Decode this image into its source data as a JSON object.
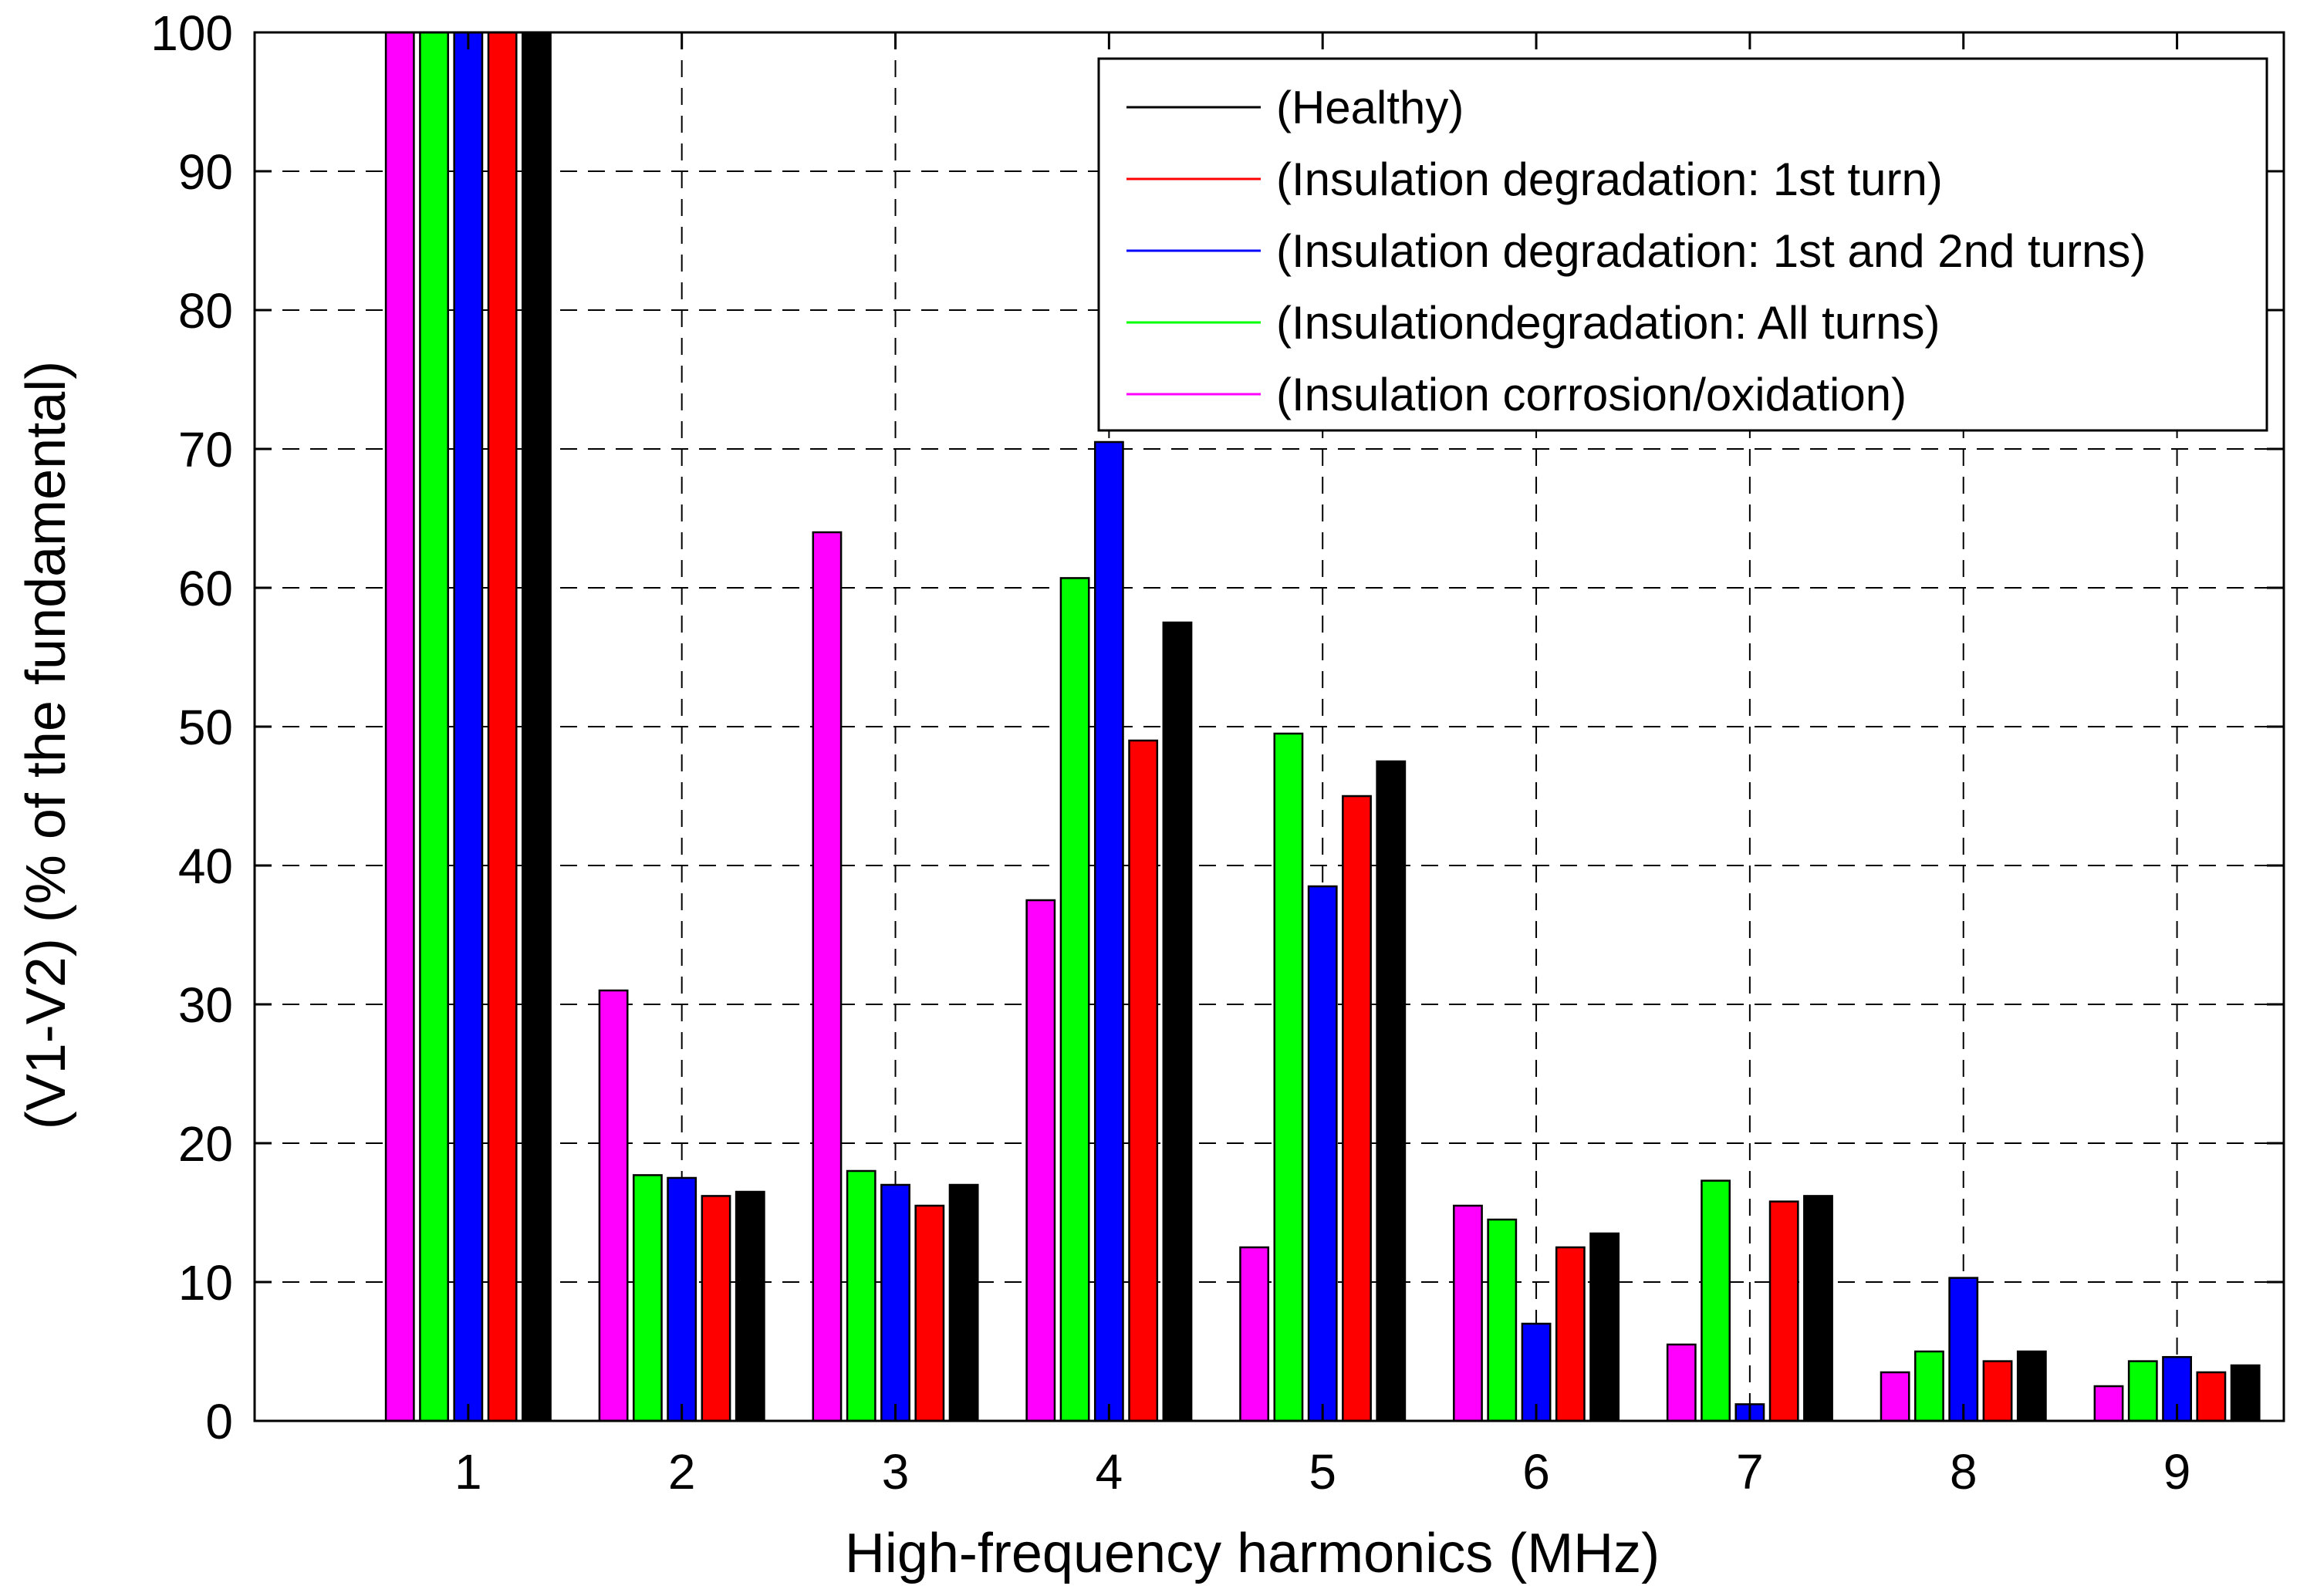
{
  "chart_data": {
    "type": "bar",
    "title": "",
    "xlabel": "High-frequency harmonics (MHz)",
    "ylabel": "(V1-V2) (% of the fundamental)",
    "ylim": [
      0,
      100
    ],
    "xlim": [
      0,
      9.5
    ],
    "yticks": [
      0,
      10,
      20,
      30,
      40,
      50,
      60,
      70,
      80,
      90,
      100
    ],
    "grid": true,
    "legend_position": "top-right",
    "categories": [
      "1",
      "2",
      "3",
      "4",
      "5",
      "6",
      "7",
      "8",
      "9"
    ],
    "series": [
      {
        "name": "(Insulation corrosion/oxidation)",
        "color": "#ff00ff",
        "values": [
          100,
          31,
          64,
          37.5,
          12.5,
          15.5,
          5.5,
          3.5,
          2.5
        ]
      },
      {
        "name": "(Insulationdegradation: All turns)",
        "color": "#00ff00",
        "values": [
          100,
          17.7,
          18,
          60.7,
          49.5,
          14.5,
          17.3,
          5,
          4.3
        ]
      },
      {
        "name": "(Insulation degradation: 1st and 2nd turns)",
        "color": "#0000ff",
        "values": [
          100,
          17.5,
          17,
          70.5,
          38.5,
          7,
          1.2,
          10.3,
          4.6
        ]
      },
      {
        "name": "(Insulation degradation: 1st turn)",
        "color": "#ff0000",
        "values": [
          100,
          16.2,
          15.5,
          49,
          45,
          12.5,
          15.8,
          4.3,
          3.5
        ]
      },
      {
        "name": "(Healthy)",
        "color": "#000000",
        "values": [
          100,
          16.5,
          17,
          57.5,
          47.5,
          13.5,
          16.2,
          5,
          4
        ]
      }
    ],
    "legend_order": [
      4,
      3,
      2,
      1,
      0
    ]
  }
}
